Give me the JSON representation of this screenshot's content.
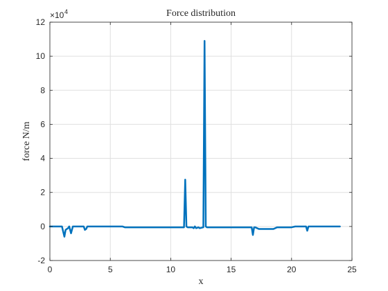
{
  "chart_data": {
    "type": "line",
    "title": "Force distribution",
    "xlabel": "x",
    "ylabel": "force N/m",
    "xlim": [
      0,
      25
    ],
    "ylim": [
      -2,
      12
    ],
    "y_multiplier": {
      "base": "×10",
      "exponent": "4"
    },
    "x_ticks": [
      "0",
      "5",
      "10",
      "15",
      "20",
      "25"
    ],
    "y_ticks": [
      "-2",
      "0",
      "2",
      "4",
      "6",
      "8",
      "10",
      "12"
    ],
    "grid": true,
    "legend": "none",
    "colors": {
      "line": "#0072BD",
      "grid": "#DFDFDF",
      "axis": "#262626"
    },
    "series": [
      {
        "x": [
          0,
          1.0,
          1.1,
          1.2,
          1.3,
          1.5,
          1.6,
          1.75,
          1.9,
          2.0,
          2.2,
          2.8,
          2.9,
          3.0,
          3.1,
          3.3,
          4.5,
          5.0,
          6.0,
          6.2,
          7.0,
          8.0,
          9.0,
          10.0,
          11.0,
          11.1,
          11.2,
          11.3,
          11.4,
          11.8,
          11.9,
          12.0,
          12.1,
          12.3,
          12.4,
          12.7,
          12.8,
          12.9,
          13.0,
          13.1,
          13.3,
          14.0,
          15.0,
          16.0,
          16.7,
          16.8,
          16.9,
          17.0,
          17.3,
          17.5,
          18.0,
          18.5,
          18.8,
          19.0,
          19.5,
          20.0,
          20.3,
          20.5,
          21.0,
          21.2,
          21.3,
          21.4,
          21.6,
          22.0,
          23.0,
          24.0
        ],
        "y": [
          0.0,
          0.0,
          -0.3,
          -0.6,
          -0.2,
          -0.1,
          0.0,
          -0.4,
          0.0,
          0.0,
          0.0,
          0.0,
          -0.2,
          -0.15,
          0.0,
          0.0,
          0.0,
          0.0,
          0.0,
          -0.05,
          -0.05,
          -0.05,
          -0.05,
          -0.05,
          -0.05,
          -0.05,
          2.75,
          0.0,
          -0.05,
          -0.05,
          -0.1,
          0.0,
          -0.1,
          -0.05,
          -0.1,
          -0.05,
          10.9,
          0.0,
          -0.05,
          -0.05,
          -0.05,
          -0.05,
          -0.05,
          -0.05,
          -0.05,
          -0.5,
          -0.05,
          -0.05,
          -0.15,
          -0.15,
          -0.15,
          -0.15,
          -0.05,
          -0.05,
          -0.05,
          -0.05,
          0.0,
          0.0,
          0.0,
          0.0,
          -0.25,
          0.0,
          0.0,
          0.0,
          0.0,
          0.0
        ]
      }
    ]
  }
}
